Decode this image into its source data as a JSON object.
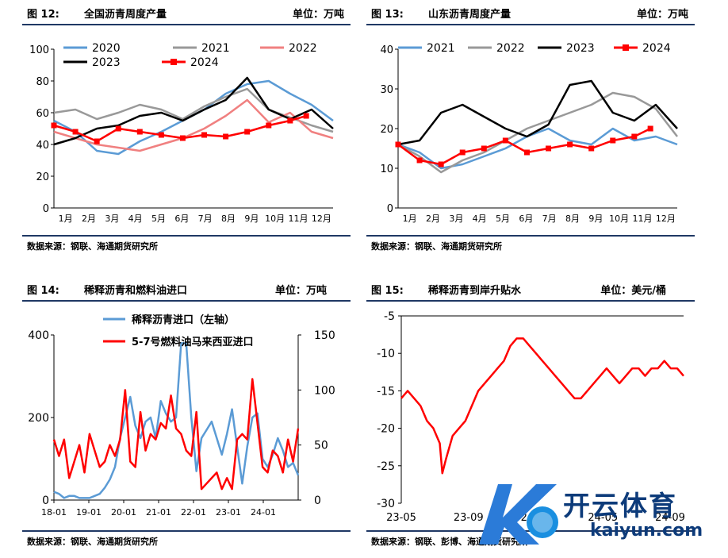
{
  "colors": {
    "s2020": "#5b9bd5",
    "s2021": "#999999",
    "s2022": "#f08080",
    "s2023": "#000000",
    "s2024": "#ff0000",
    "blue": "#5b9bd5",
    "red": "#ff0000",
    "rule": "#1f3864",
    "brand": "#0d3b7a"
  },
  "charts": {
    "c12": {
      "label": "图 12:",
      "title": "全国沥青周度产量",
      "unit": "单位：万吨",
      "source": "数据来源：钢联、海通期货研究所"
    },
    "c13": {
      "label": "图 13:",
      "title": "山东沥青周度产量",
      "unit": "单位：万吨",
      "source": "数据来源：钢联、海通期货研究所"
    },
    "c14": {
      "label": "图 14:",
      "title": "稀释沥青和燃料油进口",
      "unit": "单位：万吨",
      "source": "数据来源：钢联、海通期货研究所"
    },
    "c15": {
      "label": "图 15:",
      "title": "稀释沥青到岸升贴水",
      "unit": "单位：美元/桶",
      "source": "数据来源：钢联、彭博、海通期货研究所"
    }
  },
  "chart_data": [
    {
      "id": "c12",
      "type": "line",
      "title": "全国沥青周度产量",
      "ylabel": "单位：万吨",
      "ylim": [
        0,
        100
      ],
      "yticks": [
        0,
        20,
        40,
        60,
        80,
        100
      ],
      "xlim": [
        0,
        52
      ],
      "xticks": [
        "1月",
        "2月",
        "3月",
        "4月",
        "5月",
        "6月",
        "7月",
        "8月",
        "9月",
        "10月",
        "11月",
        "12月"
      ],
      "legend": "top",
      "grid": false,
      "series": [
        {
          "name": "2020",
          "color": "#5b9bd5",
          "x": [
            0,
            4,
            8,
            12,
            16,
            20,
            24,
            28,
            32,
            36,
            40,
            44,
            48,
            52
          ],
          "values": [
            55,
            48,
            36,
            34,
            42,
            48,
            55,
            62,
            72,
            78,
            80,
            72,
            65,
            55
          ]
        },
        {
          "name": "2021",
          "color": "#999999",
          "x": [
            0,
            4,
            8,
            12,
            16,
            20,
            24,
            28,
            32,
            36,
            40,
            44,
            48,
            52
          ],
          "values": [
            60,
            62,
            56,
            60,
            65,
            62,
            56,
            64,
            70,
            75,
            62,
            57,
            52,
            48
          ]
        },
        {
          "name": "2022",
          "color": "#f08080",
          "x": [
            0,
            4,
            8,
            12,
            16,
            20,
            24,
            28,
            32,
            36,
            40,
            44,
            48,
            52
          ],
          "values": [
            48,
            44,
            40,
            38,
            36,
            40,
            44,
            50,
            58,
            68,
            54,
            60,
            48,
            44
          ]
        },
        {
          "name": "2023",
          "color": "#000000",
          "x": [
            0,
            4,
            8,
            12,
            16,
            20,
            24,
            28,
            32,
            36,
            40,
            44,
            48,
            52
          ],
          "values": [
            40,
            44,
            50,
            52,
            58,
            60,
            55,
            62,
            68,
            82,
            62,
            56,
            62,
            50
          ]
        },
        {
          "name": "2024",
          "color": "#ff0000",
          "x": [
            0,
            4,
            8,
            12,
            16,
            20,
            24,
            28,
            32,
            36,
            40,
            44,
            47
          ],
          "values": [
            52,
            48,
            42,
            50,
            48,
            46,
            44,
            46,
            45,
            48,
            52,
            55,
            58
          ]
        }
      ]
    },
    {
      "id": "c13",
      "type": "line",
      "title": "山东沥青周度产量",
      "ylabel": "单位：万吨",
      "ylim": [
        0,
        40
      ],
      "yticks": [
        0,
        10,
        20,
        30,
        40
      ],
      "xlim": [
        0,
        52
      ],
      "xticks": [
        "1月",
        "2月",
        "3月",
        "4月",
        "5月",
        "6月",
        "7月",
        "8月",
        "9月",
        "10月",
        "11月",
        "12月"
      ],
      "legend": "top",
      "grid": false,
      "series": [
        {
          "name": "2021",
          "color": "#5b9bd5",
          "x": [
            0,
            4,
            8,
            12,
            16,
            20,
            24,
            28,
            32,
            36,
            40,
            44,
            48,
            52
          ],
          "values": [
            16,
            14,
            10,
            11,
            13,
            15,
            18,
            20,
            17,
            16,
            20,
            17,
            18,
            16
          ]
        },
        {
          "name": "2022",
          "color": "#999999",
          "x": [
            0,
            4,
            8,
            12,
            16,
            20,
            24,
            28,
            32,
            36,
            40,
            44,
            48,
            52
          ],
          "values": [
            16,
            13,
            9,
            12,
            14,
            17,
            20,
            22,
            24,
            26,
            29,
            28,
            25,
            18
          ]
        },
        {
          "name": "2023",
          "color": "#000000",
          "x": [
            0,
            4,
            8,
            12,
            16,
            20,
            24,
            28,
            32,
            36,
            40,
            44,
            48,
            52
          ],
          "values": [
            16,
            17,
            24,
            26,
            23,
            20,
            18,
            21,
            31,
            32,
            24,
            22,
            26,
            20
          ]
        },
        {
          "name": "2024",
          "color": "#ff0000",
          "x": [
            0,
            4,
            8,
            12,
            16,
            20,
            24,
            28,
            32,
            36,
            40,
            44,
            47
          ],
          "values": [
            16,
            12,
            11,
            14,
            15,
            17,
            14,
            15,
            16,
            15,
            17,
            18,
            20
          ]
        }
      ]
    },
    {
      "id": "c14",
      "type": "line",
      "title": "稀释沥青和燃料油进口",
      "ylabel": "单位：万吨",
      "xticks": [
        "18-01",
        "19-01",
        "20-01",
        "21-01",
        "22-01",
        "23-01",
        "24-01"
      ],
      "left_ylim": [
        0,
        400
      ],
      "left_yticks": [
        0,
        200,
        400
      ],
      "right_ylim": [
        0,
        150
      ],
      "right_yticks": [
        0,
        50,
        100,
        150
      ],
      "legend": "top",
      "grid": false,
      "series": [
        {
          "name": "稀释沥青进口（左轴）",
          "axis": "left",
          "color": "#5b9bd5",
          "values": [
            20,
            15,
            5,
            10,
            10,
            5,
            5,
            5,
            10,
            15,
            30,
            50,
            80,
            150,
            200,
            250,
            180,
            150,
            190,
            200,
            150,
            240,
            210,
            190,
            200,
            380,
            380,
            200,
            70,
            150,
            170,
            190,
            150,
            110,
            160,
            220,
            130,
            40,
            130,
            200,
            210,
            100,
            80,
            110,
            150,
            120,
            80,
            90,
            60
          ]
        },
        {
          "name": "5-7号燃料油马来西亚进口",
          "axis": "right",
          "color": "#ff0000",
          "values": [
            55,
            40,
            55,
            20,
            35,
            50,
            25,
            60,
            45,
            30,
            35,
            50,
            40,
            55,
            100,
            35,
            30,
            80,
            45,
            60,
            55,
            70,
            65,
            95,
            65,
            60,
            45,
            40,
            80,
            10,
            15,
            20,
            25,
            10,
            20,
            10,
            55,
            60,
            55,
            110,
            70,
            30,
            25,
            45,
            40,
            25,
            55,
            35,
            65
          ]
        }
      ]
    },
    {
      "id": "c15",
      "type": "line",
      "title": "稀释沥青到岸升贴水",
      "ylabel": "单位：美元/桶",
      "ylim": [
        -30,
        -5
      ],
      "yticks": [
        -5,
        -10,
        -15,
        -20,
        -25,
        -30
      ],
      "xticks": [
        "23-05",
        "23-09",
        "24-01",
        "24-05",
        "24-09"
      ],
      "legend": "none",
      "grid": false,
      "series": [
        {
          "name": "",
          "color": "#ff0000",
          "x": [
            0,
            0.5,
            1,
            1.5,
            2,
            2.5,
            3,
            3.2,
            3.5,
            4,
            4.5,
            5,
            5.5,
            6,
            6.5,
            7,
            7.5,
            8,
            8.5,
            9,
            9.5,
            10,
            10.5,
            11,
            11.5,
            12,
            12.5,
            13,
            13.5,
            14,
            14.5,
            15,
            15.5,
            16,
            16.5,
            17,
            17.5,
            18,
            18.5,
            19,
            19.5,
            20,
            20.5,
            21,
            21.5,
            22
          ],
          "values": [
            -16,
            -15,
            -16,
            -17,
            -19,
            -20,
            -22,
            -26,
            -24,
            -21,
            -20,
            -19,
            -17,
            -15,
            -14,
            -13,
            -12,
            -11,
            -9,
            -8,
            -8,
            -9,
            -10,
            -11,
            -12,
            -13,
            -14,
            -15,
            -16,
            -16,
            -15,
            -14,
            -13,
            -12,
            -13,
            -14,
            -13,
            -12,
            -12,
            -13,
            -12,
            -12,
            -11,
            -12,
            -12,
            -13
          ]
        }
      ]
    }
  ],
  "watermark": {
    "brand_cn": "开云体育",
    "brand_en": "kaiyun.com"
  }
}
